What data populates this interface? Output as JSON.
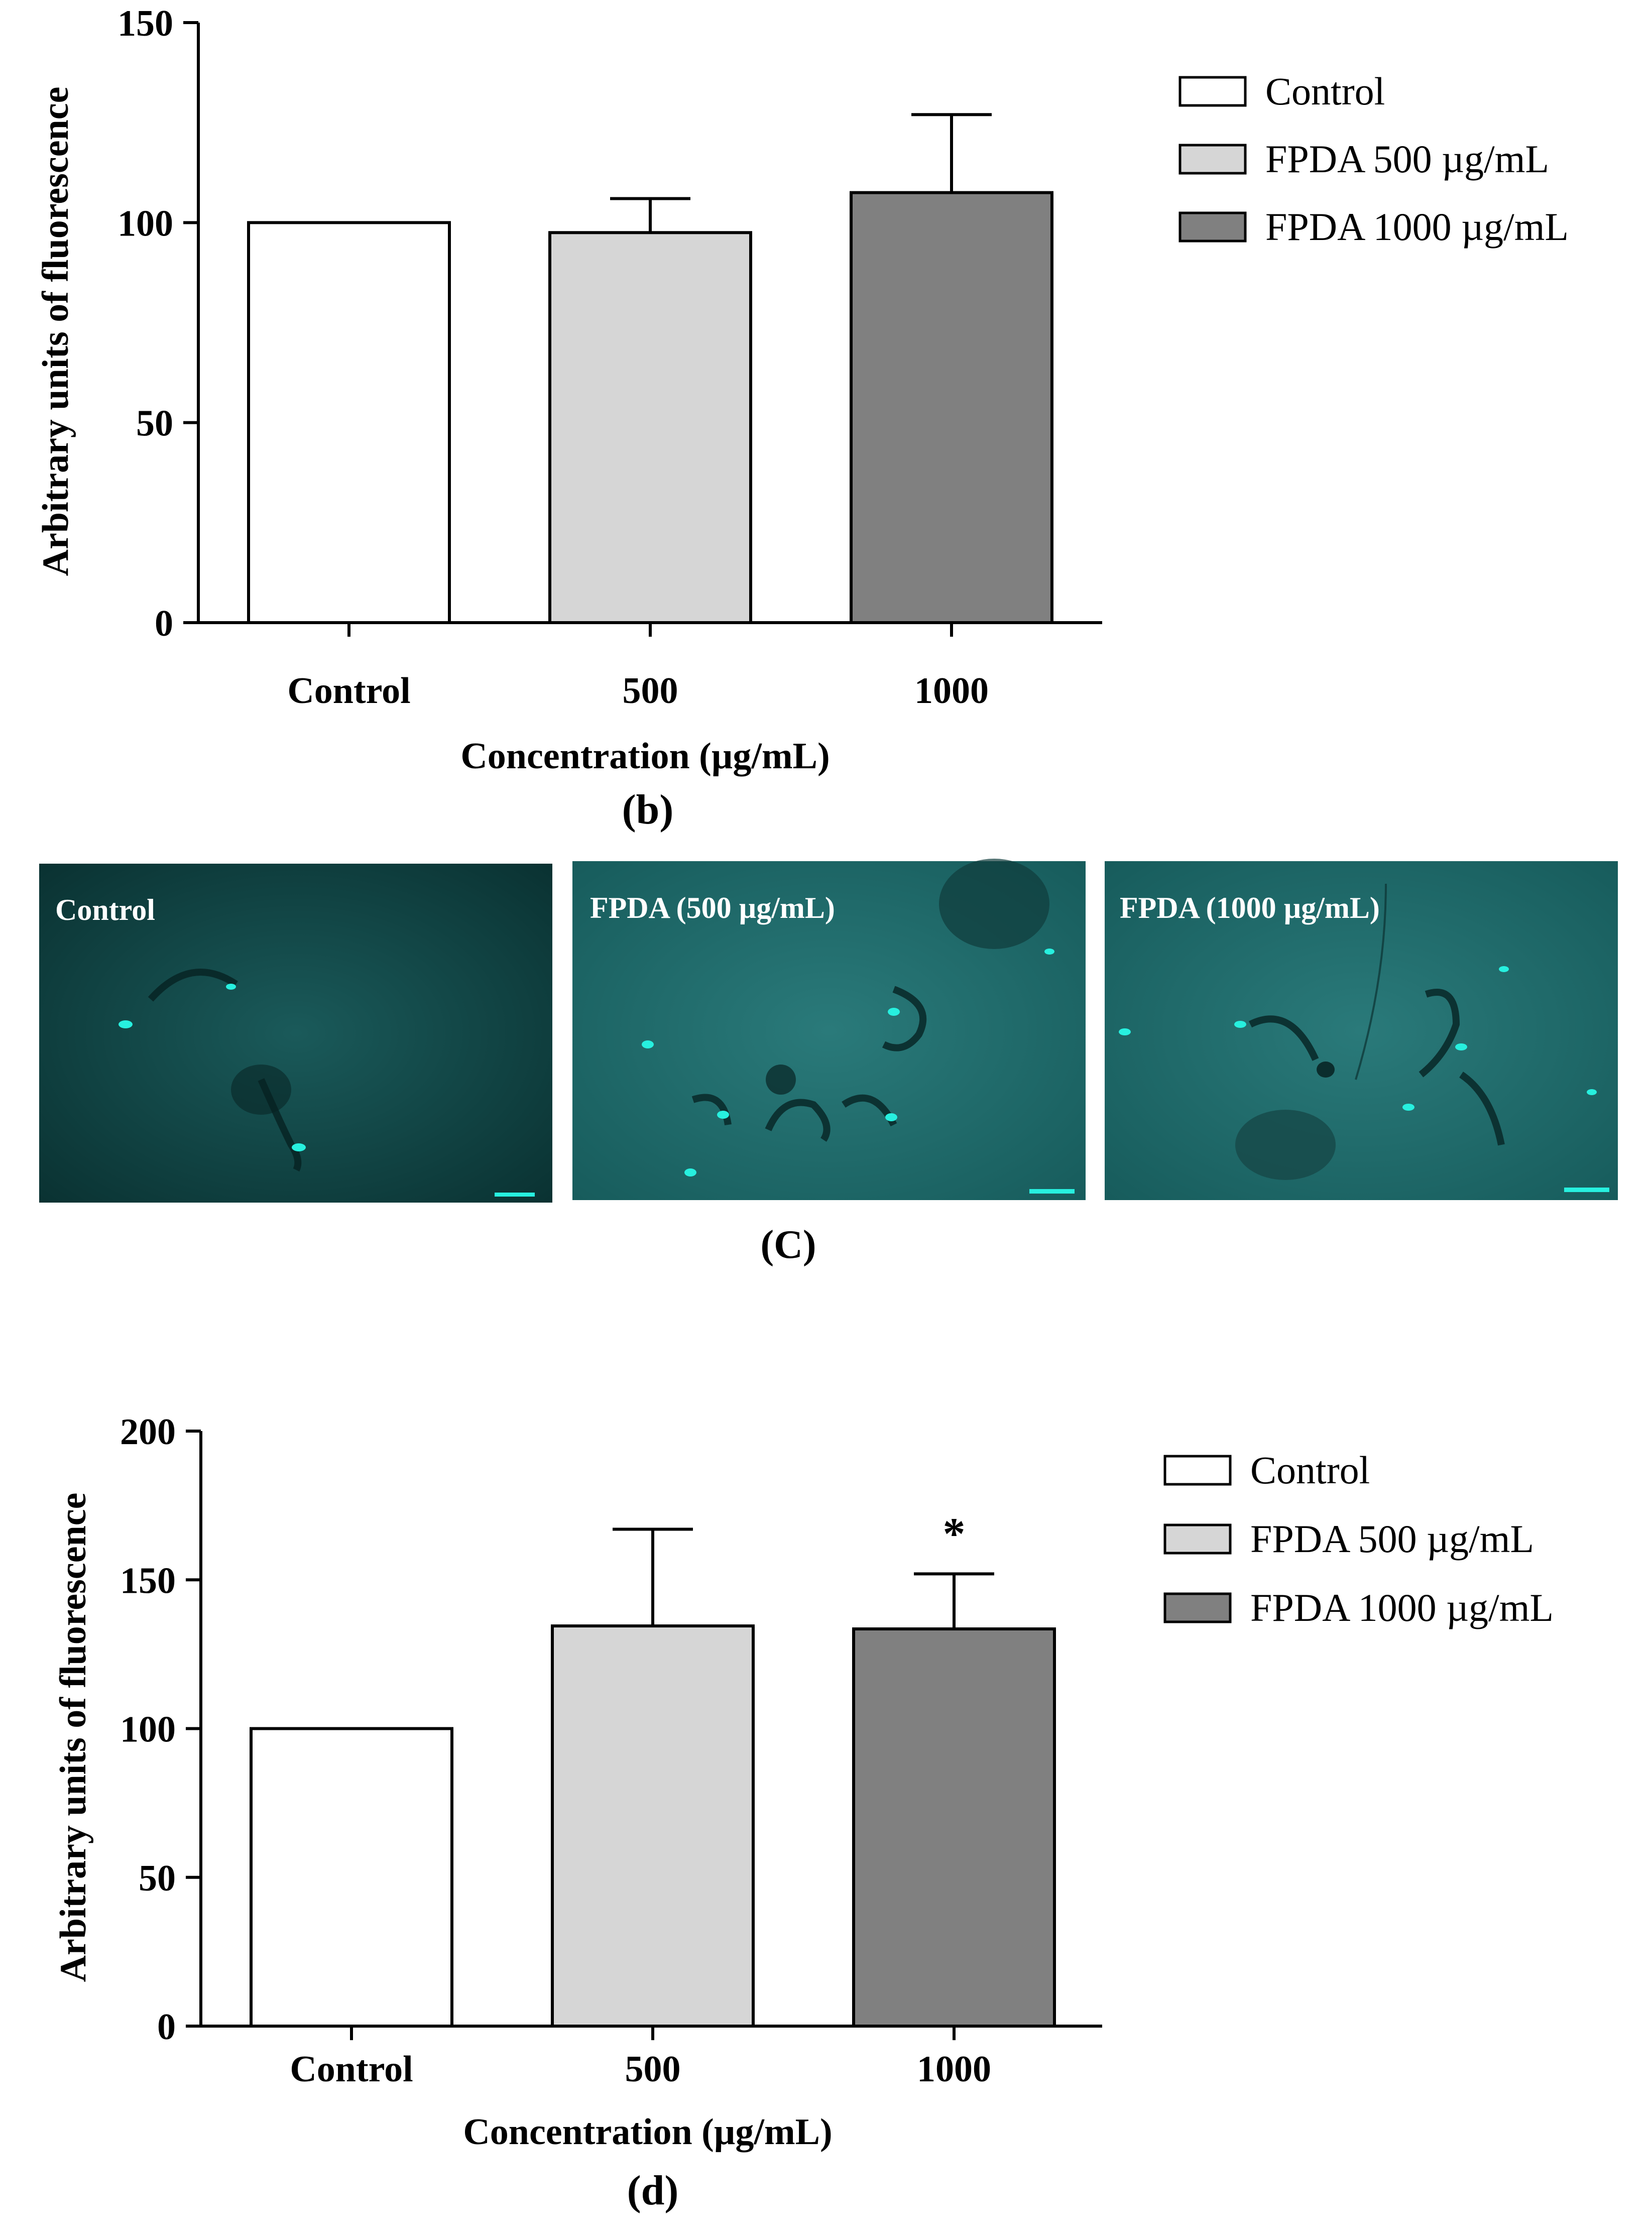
{
  "colors": {
    "control": "#ffffff",
    "fpda500": "#d6d6d6",
    "fpda1000": "#808080",
    "stroke": "#000000",
    "micro_bg": "#0b3b3b",
    "micro_bg_light": "#1f6b6b",
    "micro_spot": "#27f0df"
  },
  "chart_data": [
    {
      "type": "bar",
      "panel_label": "(b)",
      "title": "",
      "xlabel": "Concentration (µg/mL)",
      "ylabel": "Arbitrary units of fluorescence",
      "categories": [
        "Control",
        "500",
        "1000"
      ],
      "values": [
        100,
        97.5,
        107.5
      ],
      "errors_upper": [
        0,
        8.5,
        19.5
      ],
      "ylim": [
        0,
        150
      ],
      "yticks": [
        "0",
        "50",
        "100",
        "150"
      ],
      "legend": [
        "Control",
        "FPDA 500 µg/mL",
        "FPDA 1000 µg/mL"
      ],
      "legend_position": "top-right",
      "annotations": []
    },
    {
      "type": "bar",
      "panel_label": "(d)",
      "title": "",
      "xlabel": "Concentration (µg/mL)",
      "ylabel": "Arbitrary units of fluorescence",
      "categories": [
        "Control",
        "500",
        "1000"
      ],
      "values": [
        100,
        134.5,
        133.5
      ],
      "errors_upper": [
        0,
        32.5,
        18.5
      ],
      "ylim": [
        0,
        200
      ],
      "yticks": [
        "0",
        "50",
        "100",
        "150",
        "200"
      ],
      "legend": [
        "Control",
        "FPDA 500 µg/mL",
        "FPDA 1000 µg/mL"
      ],
      "legend_position": "top-right",
      "annotations": [
        {
          "category": "1000",
          "text": "*"
        }
      ]
    }
  ],
  "micrographs": {
    "panel_label": "(C)",
    "labels": [
      "Control",
      "FPDA (500 µg/mL)",
      "FPDA (1000 µg/mL)"
    ]
  }
}
